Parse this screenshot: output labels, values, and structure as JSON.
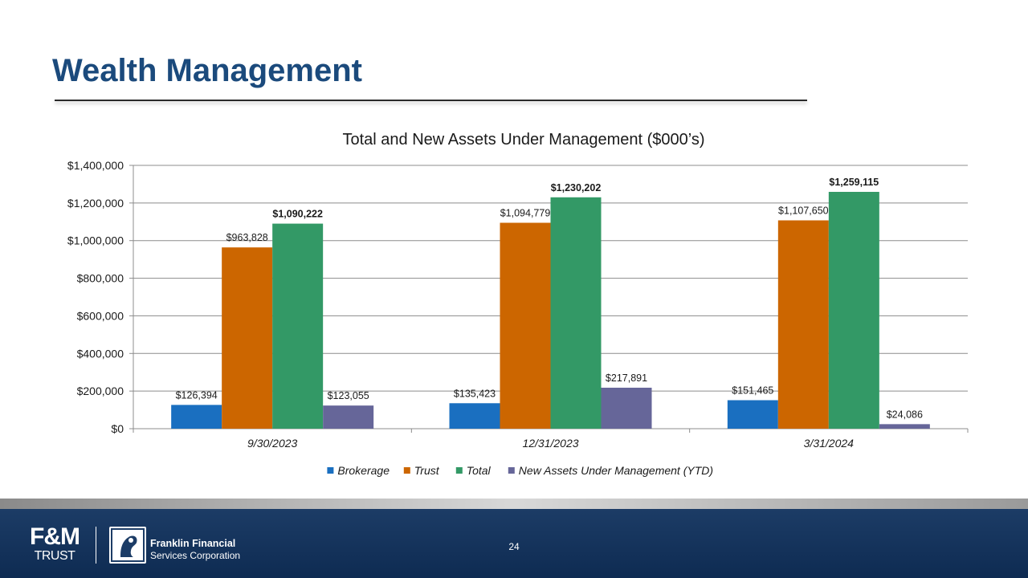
{
  "slide": {
    "title": "Wealth Management",
    "page_number": "24"
  },
  "footer": {
    "logo_fm_main": "F&M",
    "logo_fm_sub": "TRUST",
    "company_line1": "Franklin Financial",
    "company_line2": "Services Corporation"
  },
  "chart_data": {
    "type": "bar",
    "title": "Total and New Assets Under Management ($000’s)",
    "xlabel": "",
    "ylabel": "",
    "ylim": [
      0,
      1400000
    ],
    "yticks": [
      0,
      200000,
      400000,
      600000,
      800000,
      1000000,
      1200000,
      1400000
    ],
    "ytick_labels": [
      "$0",
      "$200,000",
      "$400,000",
      "$600,000",
      "$800,000",
      "$1,000,000",
      "$1,200,000",
      "$1,400,000"
    ],
    "grid": true,
    "legend_position": "bottom",
    "categories": [
      "9/30/2023",
      "12/31/2023",
      "3/31/2024"
    ],
    "series": [
      {
        "name": "Brokerage",
        "color": "#1a6fc0",
        "values": [
          126394,
          135423,
          151465
        ],
        "labels": [
          "$126,394",
          "$135,423",
          "$151,465"
        ],
        "bold": false
      },
      {
        "name": "Trust",
        "color": "#cc6600",
        "values": [
          963828,
          1094779,
          1107650
        ],
        "labels": [
          "$963,828",
          "$1,094,779",
          "$1,107,650"
        ],
        "bold": false
      },
      {
        "name": "Total",
        "color": "#339966",
        "values": [
          1090222,
          1230202,
          1259115
        ],
        "labels": [
          "$1,090,222",
          "$1,230,202",
          "$1,259,115"
        ],
        "bold": true
      },
      {
        "name": "New Assets Under Management (YTD)",
        "color": "#666699",
        "values": [
          123055,
          217891,
          24086
        ],
        "labels": [
          "$123,055",
          "$217,891",
          "$24,086"
        ],
        "bold": false
      }
    ]
  }
}
